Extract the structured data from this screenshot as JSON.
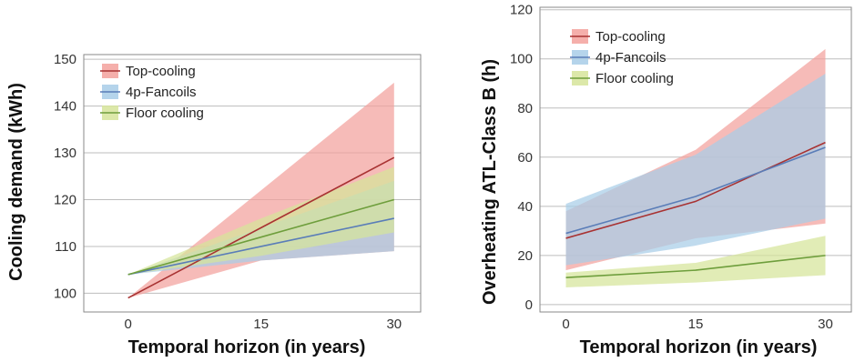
{
  "chart_data": [
    {
      "type": "area",
      "title": "",
      "xlabel": "Temporal horizon (in years)",
      "ylabel": "Cooling demand (kWh)",
      "x": [
        0,
        15,
        30
      ],
      "xlim": [
        -5,
        33
      ],
      "ylim": [
        96,
        151
      ],
      "yticks": [
        100,
        110,
        120,
        130,
        140,
        150
      ],
      "xticks": [
        0,
        15,
        30
      ],
      "grid": "horizontal",
      "legend_position": "top-left",
      "series": [
        {
          "name": "Top-cooling",
          "fill_color": "#f3a19c",
          "line_color": "#a83232",
          "line": [
            99,
            114,
            129
          ],
          "lower": [
            99,
            107,
            109
          ],
          "upper": [
            99,
            122,
            145
          ]
        },
        {
          "name": "4p-Fancoils",
          "fill_color": "#a8cde8",
          "line_color": "#5a7db8",
          "line": [
            104,
            110,
            116
          ],
          "lower": [
            104,
            107,
            109
          ],
          "upper": [
            104,
            114,
            124
          ]
        },
        {
          "name": "Floor cooling",
          "fill_color": "#d6e49a",
          "line_color": "#6e9e3c",
          "line": [
            104,
            112,
            120
          ],
          "lower": [
            104,
            108,
            113
          ],
          "upper": [
            104,
            116,
            127
          ]
        }
      ]
    },
    {
      "type": "area",
      "title": "",
      "xlabel": "Temporal horizon (in years)",
      "ylabel": "Overheating ATL-Class B (h)",
      "x": [
        0,
        15,
        30
      ],
      "xlim": [
        -3,
        33
      ],
      "ylim": [
        -3,
        121
      ],
      "yticks": [
        0,
        20,
        40,
        60,
        80,
        100,
        120
      ],
      "xticks": [
        0,
        15,
        30
      ],
      "grid": "horizontal",
      "legend_position": "top-left",
      "series": [
        {
          "name": "Top-cooling",
          "fill_color": "#f3a19c",
          "line_color": "#a83232",
          "line": [
            27,
            42,
            66
          ],
          "lower": [
            14,
            27,
            33
          ],
          "upper": [
            38,
            63,
            104
          ]
        },
        {
          "name": "4p-Fancoils",
          "fill_color": "#a8cde8",
          "line_color": "#5a7db8",
          "line": [
            29,
            44,
            64
          ],
          "lower": [
            16,
            24,
            35
          ],
          "upper": [
            41,
            61,
            94
          ]
        },
        {
          "name": "Floor cooling",
          "fill_color": "#d6e49a",
          "line_color": "#6e9e3c",
          "line": [
            11,
            14,
            20
          ],
          "lower": [
            7,
            9,
            12
          ],
          "upper": [
            13,
            17,
            28
          ]
        }
      ]
    }
  ]
}
